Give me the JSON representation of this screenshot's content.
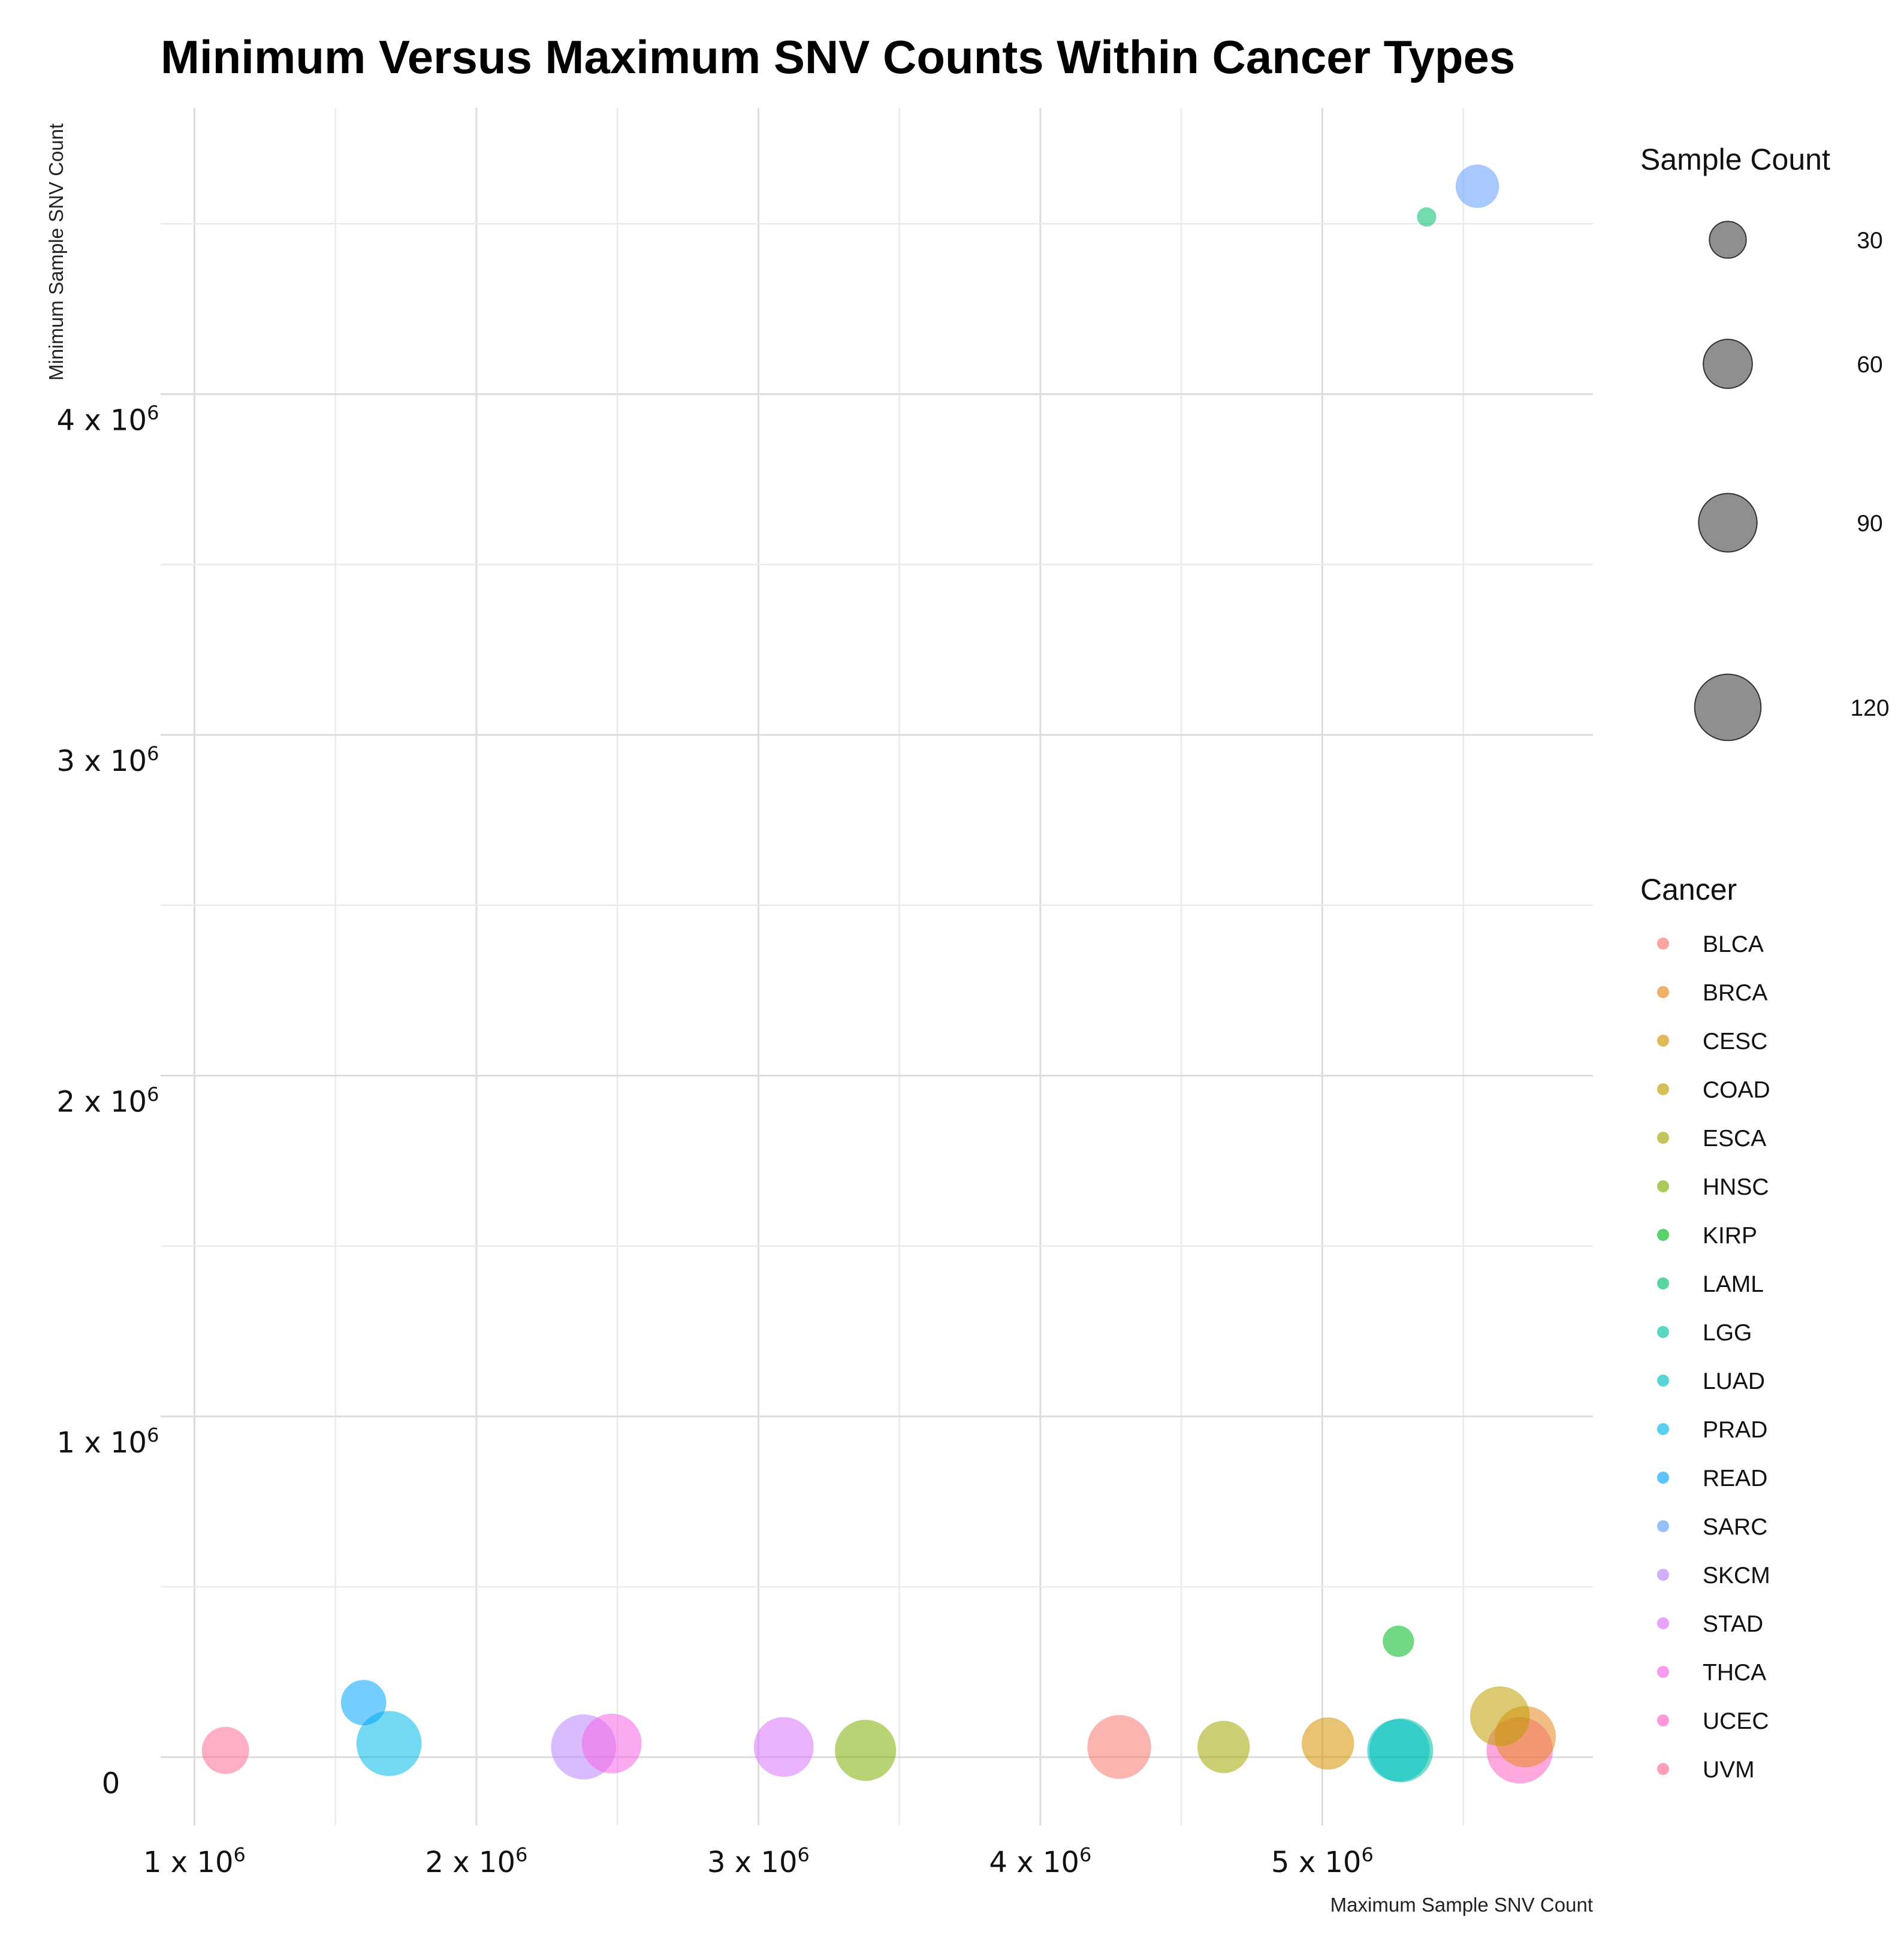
{
  "chart_data": {
    "type": "scatter",
    "title": "Minimum Versus Maximum SNV Counts Within Cancer Types",
    "xlabel": "Maximum Sample SNV Count",
    "ylabel": "Minimum Sample SNV Count",
    "xlim": [
      880000,
      5960000
    ],
    "ylim": [
      -200000,
      4840000
    ],
    "x_ticks": [
      {
        "value": 1000000,
        "mantissa": "1 x 10",
        "exp": "6"
      },
      {
        "value": 2000000,
        "mantissa": "2 x 10",
        "exp": "6"
      },
      {
        "value": 3000000,
        "mantissa": "3 x 10",
        "exp": "6"
      },
      {
        "value": 4000000,
        "mantissa": "4 x 10",
        "exp": "6"
      },
      {
        "value": 5000000,
        "mantissa": "5 x 10",
        "exp": "6"
      }
    ],
    "y_ticks": [
      {
        "value": 0,
        "mantissa": "0",
        "exp": ""
      },
      {
        "value": 1000000,
        "mantissa": "1 x 10",
        "exp": "6"
      },
      {
        "value": 2000000,
        "mantissa": "2 x 10",
        "exp": "6"
      },
      {
        "value": 3000000,
        "mantissa": "3 x 10",
        "exp": "6"
      },
      {
        "value": 4000000,
        "mantissa": "4 x 10",
        "exp": "6"
      }
    ],
    "grid": true,
    "size_legend": {
      "title": "Sample Count",
      "values": [
        30,
        60,
        90,
        120
      ]
    },
    "color_legend": {
      "title": "Cancer",
      "placement": "right"
    },
    "series": [
      {
        "name": "BLCA",
        "color": "#F8766D",
        "x": 4280000,
        "y": 30000,
        "size": 110
      },
      {
        "name": "BRCA",
        "color": "#E7861B",
        "x": 5720000,
        "y": 60000,
        "size": 100
      },
      {
        "name": "CESC",
        "color": "#D39200",
        "x": 5020000,
        "y": 40000,
        "size": 70
      },
      {
        "name": "COAD",
        "color": "#BD9C00",
        "x": 5630000,
        "y": 120000,
        "size": 95
      },
      {
        "name": "ESCA",
        "color": "#A3A500",
        "x": 4650000,
        "y": 30000,
        "size": 70
      },
      {
        "name": "HNSC",
        "color": "#7CAE00",
        "x": 3380000,
        "y": 20000,
        "size": 100
      },
      {
        "name": "KIRP",
        "color": "#00B81F",
        "x": 5270000,
        "y": 340000,
        "size": 20
      },
      {
        "name": "LAML",
        "color": "#00BE6C",
        "x": 5370000,
        "y": 4520000,
        "size": 5
      },
      {
        "name": "LGG",
        "color": "#00C1A3",
        "x": 5280000,
        "y": 20000,
        "size": 110
      },
      {
        "name": "LUAD",
        "color": "#00BFC4",
        "x": 5270000,
        "y": 20000,
        "size": 105
      },
      {
        "name": "PRAD",
        "color": "#00B8E5",
        "x": 1690000,
        "y": 40000,
        "size": 115
      },
      {
        "name": "READ",
        "color": "#00A5FF",
        "x": 1600000,
        "y": 160000,
        "size": 50
      },
      {
        "name": "SARC",
        "color": "#619CFF",
        "x": 5550000,
        "y": 4610000,
        "size": 45
      },
      {
        "name": "SKCM",
        "color": "#B983FF",
        "x": 2380000,
        "y": 30000,
        "size": 115
      },
      {
        "name": "STAD",
        "color": "#DB72FB",
        "x": 3090000,
        "y": 30000,
        "size": 95
      },
      {
        "name": "THCA",
        "color": "#F564E3",
        "x": 2480000,
        "y": 40000,
        "size": 95
      },
      {
        "name": "UCEC",
        "color": "#FF61C3",
        "x": 5700000,
        "y": 20000,
        "size": 120
      },
      {
        "name": "UVM",
        "color": "#FF6C91",
        "x": 1110000,
        "y": 20000,
        "size": 55
      }
    ]
  }
}
